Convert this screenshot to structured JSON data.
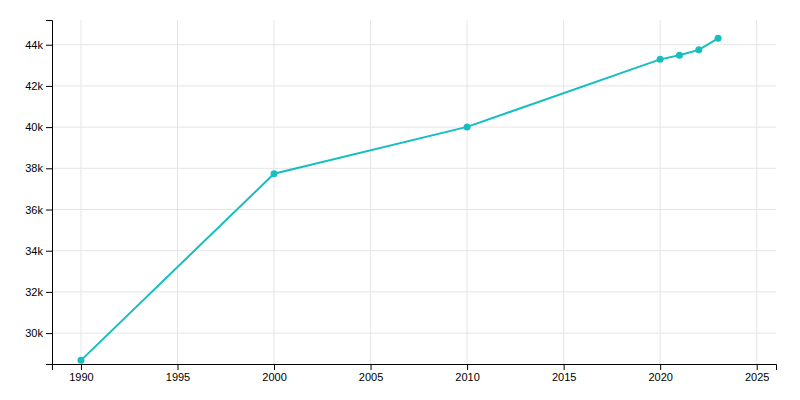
{
  "chart_data": {
    "type": "line",
    "x": [
      1990,
      2000,
      2010,
      2020,
      2021,
      2022,
      2023
    ],
    "values": [
      28677,
      37740,
      40010,
      43290,
      43490,
      43750,
      44310
    ],
    "color": "#17BEC0",
    "marker": "circle",
    "xlim": [
      1988.5,
      2026
    ],
    "ylim": [
      28500,
      45200
    ],
    "xticks": [
      1990,
      1995,
      2000,
      2005,
      2010,
      2015,
      2020,
      2025
    ],
    "yticks": [
      {
        "value": 30000,
        "label": "30k"
      },
      {
        "value": 32000,
        "label": "32k"
      },
      {
        "value": 34000,
        "label": "34k"
      },
      {
        "value": 36000,
        "label": "36k"
      },
      {
        "value": 38000,
        "label": "38k"
      },
      {
        "value": 40000,
        "label": "40k"
      },
      {
        "value": 42000,
        "label": "42k"
      },
      {
        "value": 44000,
        "label": "44k"
      }
    ],
    "grid": true
  }
}
